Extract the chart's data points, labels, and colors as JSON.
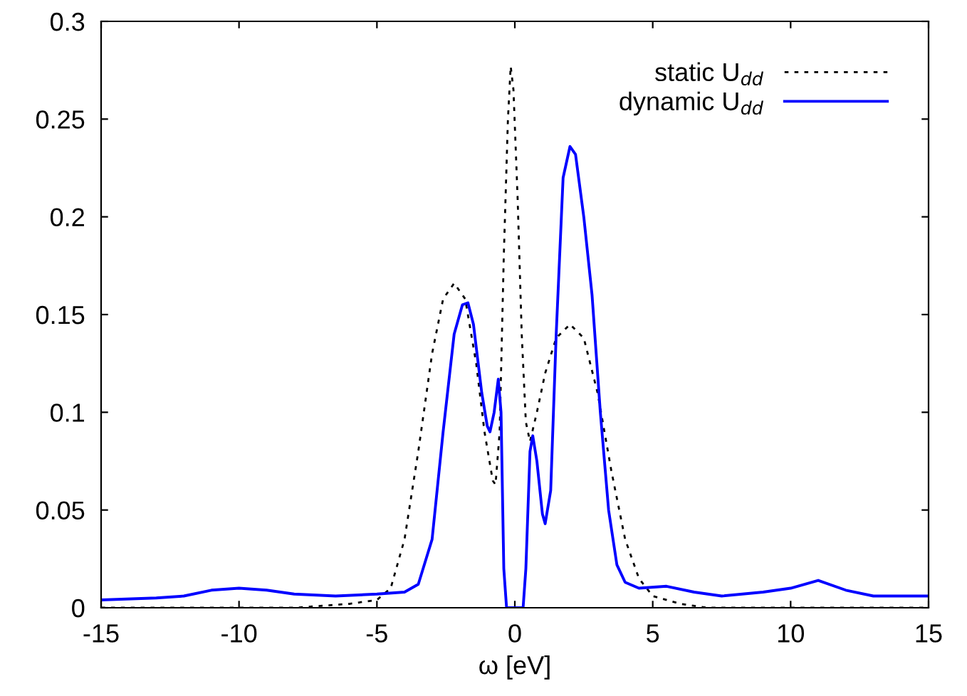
{
  "chart_data": {
    "type": "line",
    "xlabel": "ω [eV]",
    "xlim": [
      -15,
      15
    ],
    "xticks": [
      -15,
      -10,
      -5,
      0,
      5,
      10,
      15
    ],
    "ylim": [
      0,
      0.3
    ],
    "yticks": [
      0,
      0.05,
      0.1,
      0.15,
      0.2,
      0.25,
      0.3
    ],
    "grid": false,
    "legend": "top right",
    "marker": "none",
    "series": [
      {
        "name": "static U$_{dd}$",
        "color": "#000000",
        "line_style": "dotted",
        "x": [
          -15,
          -8,
          -6,
          -5,
          -4.5,
          -4,
          -3.5,
          -3,
          -2.6,
          -2.2,
          -1.8,
          -1.4,
          -1.1,
          -0.8,
          -0.7,
          -0.55,
          -0.4,
          -0.25,
          -0.15,
          -0.05,
          0.1,
          0.25,
          0.4,
          0.55,
          0.8,
          1.1,
          1.5,
          2.0,
          2.5,
          3.0,
          3.5,
          4.0,
          4.5,
          5,
          6,
          7,
          15
        ],
        "values": [
          0,
          0,
          0.002,
          0.004,
          0.01,
          0.035,
          0.08,
          0.13,
          0.158,
          0.166,
          0.158,
          0.125,
          0.09,
          0.065,
          0.063,
          0.09,
          0.18,
          0.25,
          0.277,
          0.265,
          0.21,
          0.14,
          0.095,
          0.085,
          0.1,
          0.12,
          0.138,
          0.145,
          0.138,
          0.11,
          0.07,
          0.035,
          0.015,
          0.006,
          0.002,
          0,
          0
        ]
      },
      {
        "name": "dynamic U$_{dd}$",
        "color": "#0000ff",
        "line_style": "solid",
        "x": [
          -15,
          -13,
          -12,
          -11,
          -10,
          -9,
          -8,
          -6.5,
          -5,
          -4,
          -3.5,
          -3.0,
          -2.6,
          -2.2,
          -1.9,
          -1.7,
          -1.5,
          -1.2,
          -1.0,
          -0.9,
          -0.75,
          -0.6,
          -0.5,
          -0.4,
          -0.3,
          0.3,
          0.4,
          0.55,
          0.65,
          0.8,
          1.0,
          1.1,
          1.3,
          1.5,
          1.75,
          2.0,
          2.2,
          2.5,
          2.8,
          3.1,
          3.4,
          3.7,
          4.0,
          4.5,
          5.5,
          6.5,
          7.5,
          9,
          10,
          11,
          12,
          13,
          15
        ],
        "values": [
          0.004,
          0.005,
          0.006,
          0.009,
          0.01,
          0.009,
          0.007,
          0.006,
          0.007,
          0.008,
          0.012,
          0.035,
          0.09,
          0.14,
          0.155,
          0.156,
          0.145,
          0.11,
          0.093,
          0.09,
          0.1,
          0.117,
          0.1,
          0.02,
          0,
          0,
          0.02,
          0.08,
          0.088,
          0.075,
          0.048,
          0.043,
          0.06,
          0.14,
          0.22,
          0.236,
          0.232,
          0.2,
          0.16,
          0.1,
          0.05,
          0.022,
          0.013,
          0.01,
          0.011,
          0.008,
          0.006,
          0.008,
          0.01,
          0.014,
          0.009,
          0.006,
          0.006
        ]
      }
    ]
  }
}
